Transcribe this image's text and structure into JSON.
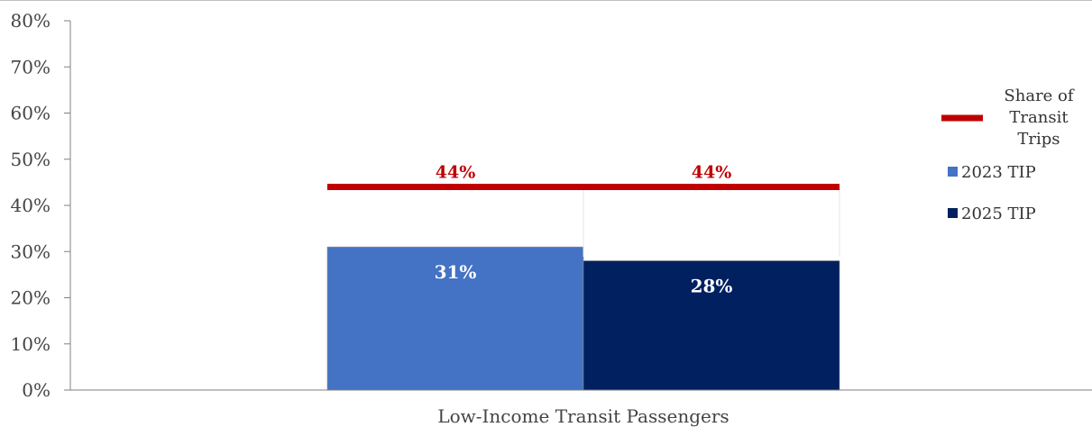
{
  "chart_data": {
    "type": "bar",
    "categories": [
      "Low-Income Transit Passengers"
    ],
    "series": [
      {
        "name": "2023 TIP",
        "values": [
          31
        ],
        "value_labels": [
          "31%"
        ],
        "color": "#4472c4"
      },
      {
        "name": "2025 TIP",
        "values": [
          28
        ],
        "value_labels": [
          "28%"
        ],
        "color": "#002060"
      }
    ],
    "reference_line": {
      "name": "Share of Transit Trips",
      "legend_lines": [
        "Share of",
        "Transit",
        "Trips"
      ],
      "values": [
        44,
        44
      ],
      "value_labels": [
        "44%",
        "44%"
      ],
      "color": "#c00000"
    },
    "ylim": [
      0,
      80
    ],
    "y_ticks": [
      0,
      10,
      20,
      30,
      40,
      50,
      60,
      70,
      80
    ],
    "y_tick_labels": [
      "0%",
      "10%",
      "20%",
      "30%",
      "40%",
      "50%",
      "60%",
      "70%",
      "80%"
    ],
    "grid": false,
    "legend_position": "right"
  }
}
